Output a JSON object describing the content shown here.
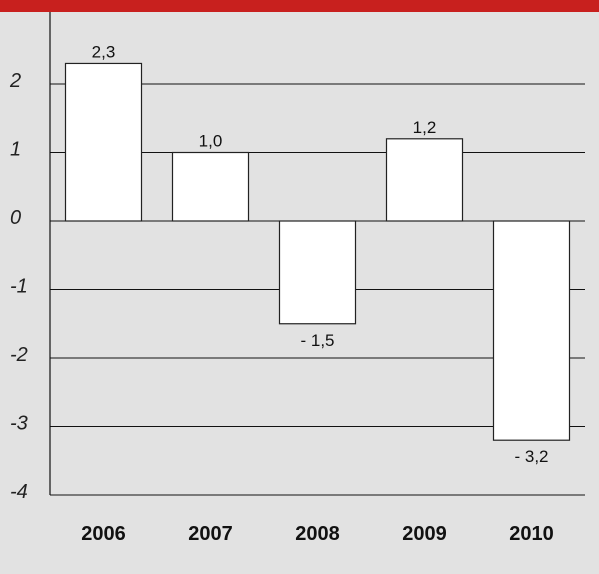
{
  "chart_data": {
    "type": "bar",
    "categories": [
      "2006",
      "2007",
      "2008",
      "2009",
      "2010"
    ],
    "values": [
      2.3,
      1.0,
      -1.5,
      1.2,
      -3.2
    ],
    "data_labels": [
      "2,3",
      "1,0",
      "- 1,5",
      "1,2",
      "- 3,2"
    ],
    "y_ticks": [
      2,
      1,
      0,
      -1,
      -2,
      -3,
      -4
    ],
    "y_tick_labels": [
      "2",
      "1",
      "0",
      "-1",
      "-2",
      "-3",
      "-4"
    ],
    "ylim": [
      -4,
      2.8
    ],
    "grid": true,
    "legend": "none",
    "title": "",
    "xlabel": "",
    "ylabel": ""
  },
  "colors": {
    "background": "#e2e2e2",
    "accent_bar": "#c8201e",
    "bar_fill": "#ffffff",
    "bar_stroke": "#222222",
    "gridline": "#111111"
  }
}
